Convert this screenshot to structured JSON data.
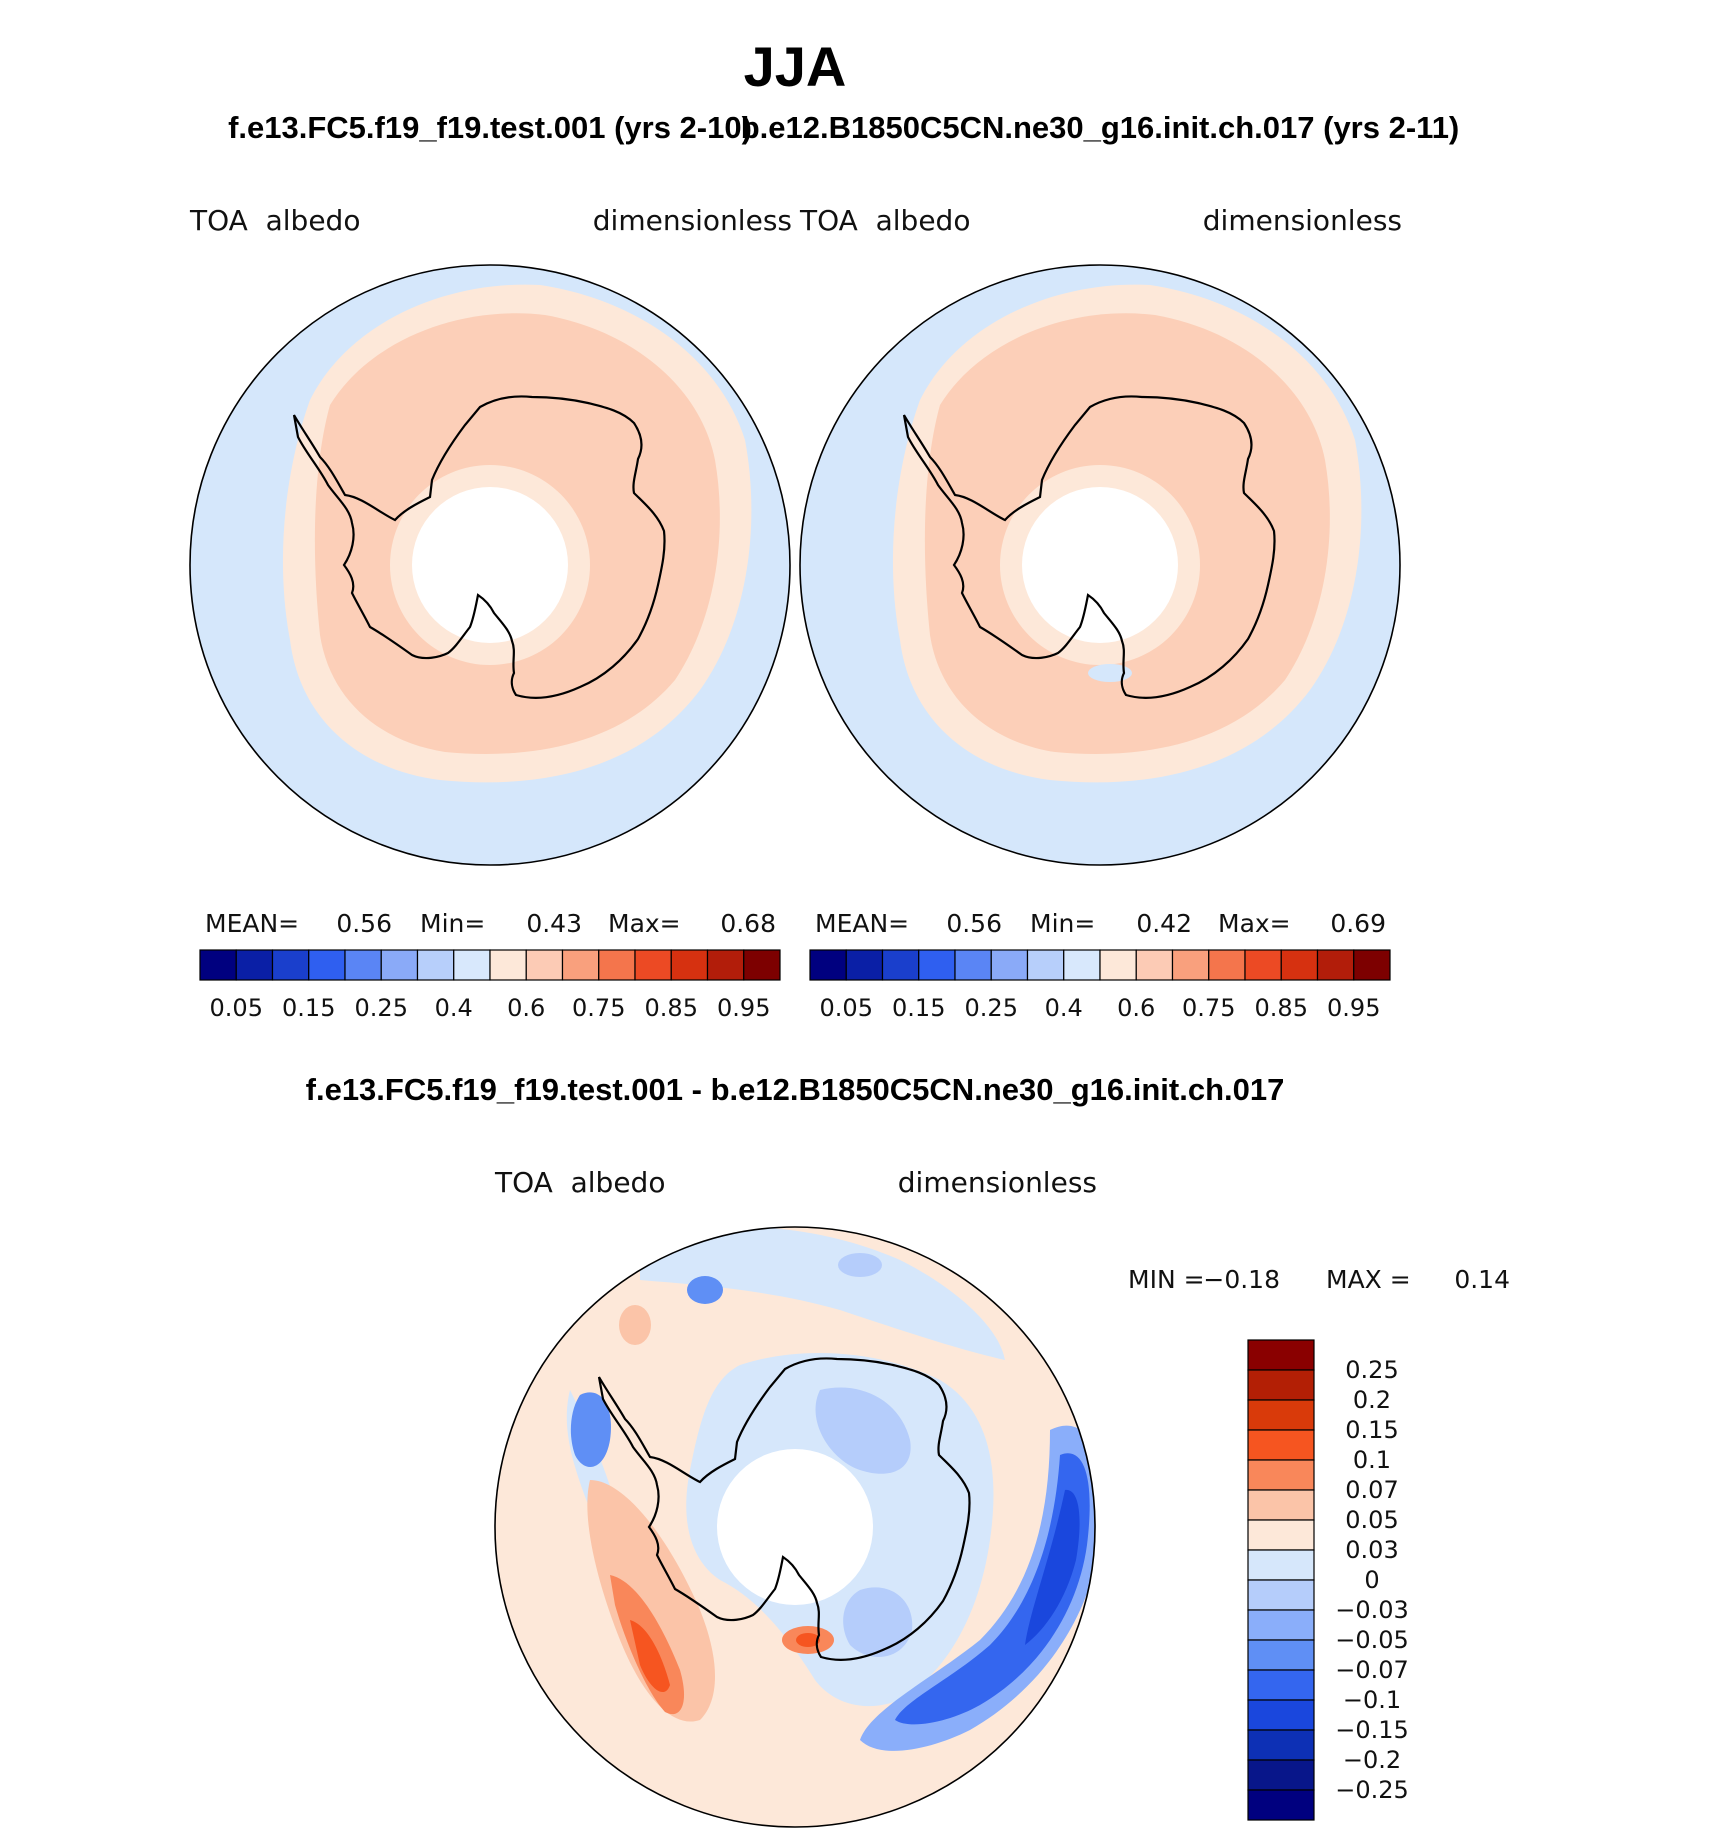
{
  "title": "JJA",
  "colors": {
    "ocean": "#d5e7fb",
    "rim": "#fde8d9",
    "plateau": "#fccfb8",
    "diff_base": "#fde8d9",
    "coast": "#000000"
  },
  "panels": [
    {
      "case_title": "f.e13.FC5.f19_f19.test.001 (yrs 2-10)",
      "variable": "TOA  albedo",
      "units": "dimensionless",
      "stats": {
        "mean_label": "MEAN=",
        "mean": "0.56",
        "min_label": "Min=",
        "min": "0.43",
        "max_label": "Max=",
        "max": "0.68"
      }
    },
    {
      "case_title": "b.e12.B1850C5CN.ne30_g16.init.ch.017 (yrs 2-11)",
      "variable": "TOA  albedo",
      "units": "dimensionless",
      "stats": {
        "mean_label": "MEAN=",
        "mean": "0.56",
        "min_label": "Min=",
        "min": "0.42",
        "max_label": "Max=",
        "max": "0.69"
      }
    }
  ],
  "difference": {
    "title": "f.e13.FC5.f19_f19.test.001 - b.e12.B1850C5CN.ne30_g16.init.ch.017",
    "variable": "TOA  albedo",
    "units": "dimensionless",
    "min_label": "MIN =",
    "min": "−0.18",
    "max_label": "MAX =",
    "max": "0.14"
  },
  "chart_data": [
    {
      "type": "heatmap",
      "projection": "south polar stereographic",
      "title": "f.e13.FC5.f19_f19.test.001 (yrs 2-10)",
      "variable": "TOA albedo",
      "units": "dimensionless",
      "mean": 0.56,
      "min": 0.43,
      "max": 0.68,
      "colorbar": {
        "tick_labels": [
          "0.05",
          "0.15",
          "0.25",
          "0.4",
          "0.6",
          "0.75",
          "0.85",
          "0.95"
        ],
        "colors": [
          "#00007f",
          "#0a1fa6",
          "#1a3fcc",
          "#2f5ff0",
          "#5a85f5",
          "#8aaaf8",
          "#b7cffb",
          "#d8e8fc",
          "#fde8d9",
          "#fccbb5",
          "#f9a07d",
          "#f4754c",
          "#ec4a24",
          "#d63110",
          "#b21d0a",
          "#7d0000"
        ]
      }
    },
    {
      "type": "heatmap",
      "projection": "south polar stereographic",
      "title": "b.e12.B1850C5CN.ne30_g16.init.ch.017 (yrs 2-11)",
      "variable": "TOA albedo",
      "units": "dimensionless",
      "mean": 0.56,
      "min": 0.42,
      "max": 0.69,
      "colorbar": {
        "tick_labels": [
          "0.05",
          "0.15",
          "0.25",
          "0.4",
          "0.6",
          "0.75",
          "0.85",
          "0.95"
        ],
        "colors": [
          "#00007f",
          "#0a1fa6",
          "#1a3fcc",
          "#2f5ff0",
          "#5a85f5",
          "#8aaaf8",
          "#b7cffb",
          "#d8e8fc",
          "#fde8d9",
          "#fccbb5",
          "#f9a07d",
          "#f4754c",
          "#ec4a24",
          "#d63110",
          "#b21d0a",
          "#7d0000"
        ]
      }
    },
    {
      "type": "heatmap",
      "projection": "south polar stereographic",
      "title": "f.e13.FC5.f19_f19.test.001 - b.e12.B1850C5CN.ne30_g16.init.ch.017",
      "variable": "TOA albedo",
      "units": "dimensionless",
      "min": -0.18,
      "max": 0.14,
      "colorbar": {
        "orientation": "vertical",
        "tick_labels": [
          "0.25",
          "0.2",
          "0.15",
          "0.1",
          "0.07",
          "0.05",
          "0.03",
          "0",
          "−0.03",
          "−0.05",
          "−0.07",
          "−0.1",
          "−0.15",
          "−0.2",
          "−0.25"
        ],
        "colors": [
          "#8a0000",
          "#b31f05",
          "#d93a0a",
          "#f65520",
          "#f9875a",
          "#fbc4a8",
          "#fde8d9",
          "#d6e7fb",
          "#b5cdfb",
          "#8aaefa",
          "#5f8ff5",
          "#3466ef",
          "#1a47dd",
          "#0d30b5",
          "#08168a",
          "#00007f"
        ]
      }
    }
  ]
}
